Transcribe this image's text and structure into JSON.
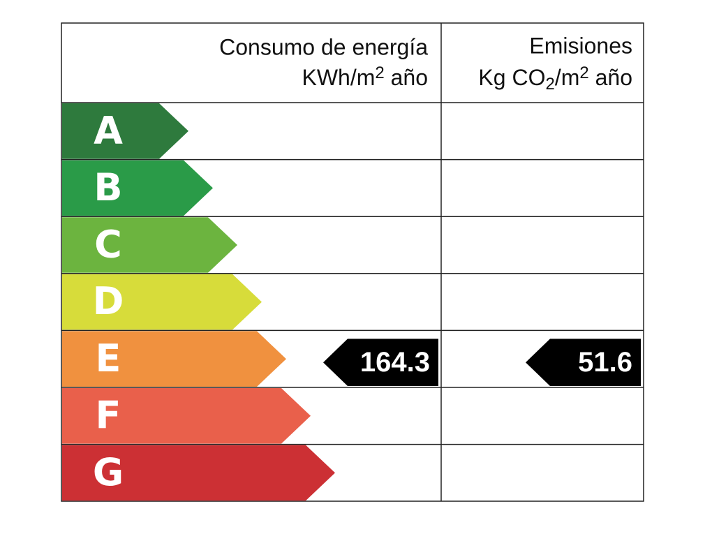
{
  "header": {
    "energy": {
      "title": "Consumo de energía",
      "unit": [
        "KWh/m",
        "2",
        " año"
      ]
    },
    "emissions": {
      "title": "Emisiones",
      "unit": [
        "Kg CO",
        "2",
        "/m",
        "2",
        " año"
      ]
    }
  },
  "ratings": [
    {
      "letter": "A",
      "color": "#2e7a3d"
    },
    {
      "letter": "B",
      "color": "#2a9b48"
    },
    {
      "letter": "C",
      "color": "#6cb43f"
    },
    {
      "letter": "D",
      "color": "#d7dc3a"
    },
    {
      "letter": "E",
      "color": "#f0913f",
      "energy": "164.3",
      "emissions": "51.6"
    },
    {
      "letter": "F",
      "color": "#e9604b"
    },
    {
      "letter": "G",
      "color": "#cc3034"
    }
  ]
}
